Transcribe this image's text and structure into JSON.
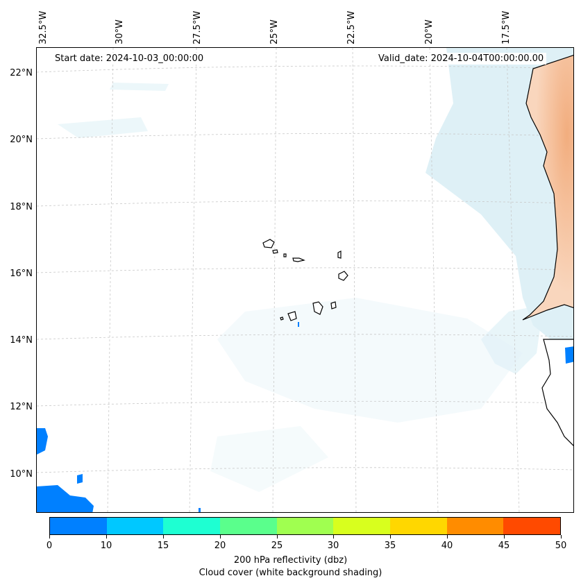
{
  "map": {
    "start_date": "Start date: 2024-10-03_00:00:00",
    "valid_date": "Valid_date: 2024-10-04T00:00:00.00",
    "lon_labels": [
      "32.5°W",
      "30°W",
      "27.5°W",
      "25°W",
      "22.5°W",
      "20°W",
      "17.5°W"
    ],
    "lat_labels": [
      "22°N",
      "20°N",
      "18°N",
      "16°N",
      "14°N",
      "12°N",
      "10°N"
    ],
    "colors": {
      "ocean": "#ffffff",
      "cloud_light": "#e6f3f8",
      "cloud_mid": "#cde7f0",
      "land_warm": "#f6c6a2",
      "land_warm_dark": "#f2b487",
      "coastline": "#000000",
      "gridline": "#bbbbbb"
    }
  },
  "colorbar": {
    "ticks": [
      "0",
      "10",
      "15",
      "20",
      "25",
      "30",
      "35",
      "40",
      "45",
      "50"
    ],
    "colors": [
      "#0080ff",
      "#00c8ff",
      "#1effd2",
      "#5aff8c",
      "#a0ff50",
      "#d8ff1e",
      "#ffd700",
      "#ff8c00",
      "#ff4a00"
    ],
    "label_line1": "200 hPa reflectivity (dbz)",
    "label_line2": "Cloud cover (white background shading)"
  }
}
